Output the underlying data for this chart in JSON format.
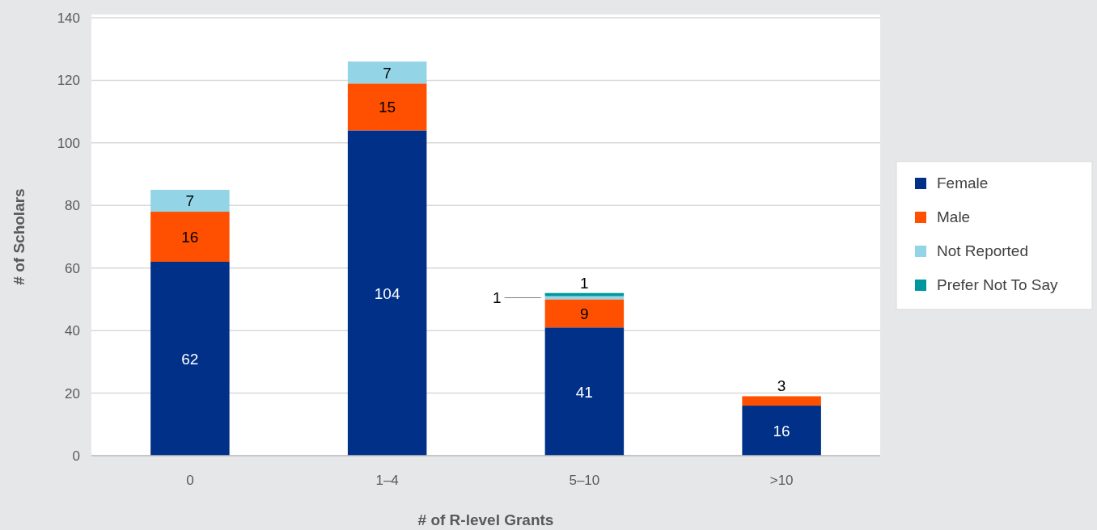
{
  "chart_data": {
    "type": "bar",
    "stacked": true,
    "xlabel": "# of R-level Grants",
    "ylabel": "# of Scholars",
    "categories": [
      "0",
      "1–4",
      "5–10",
      ">10"
    ],
    "series": [
      {
        "name": "Female",
        "color": "#003087",
        "values": [
          62,
          104,
          41,
          16
        ]
      },
      {
        "name": "Male",
        "color": "#fe5000",
        "values": [
          16,
          15,
          9,
          3
        ]
      },
      {
        "name": "Not Reported",
        "color": "#93d4e7",
        "values": [
          7,
          7,
          1,
          null
        ]
      },
      {
        "name": "Prefer Not To Say",
        "color": "#00969e",
        "values": [
          null,
          null,
          1,
          null
        ]
      }
    ],
    "ylim": [
      0,
      140
    ],
    "yticks": [
      0,
      20,
      40,
      60,
      80,
      100,
      120,
      140
    ],
    "grid": "y",
    "legend": "right",
    "data_labels": true
  }
}
